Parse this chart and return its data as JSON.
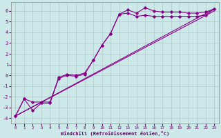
{
  "xlabel": "Windchill (Refroidissement éolien,°C)",
  "background_color": "#cce8e8",
  "grid_color": "#b0c8c8",
  "line_color": "#880088",
  "xlim": [
    -0.5,
    23.5
  ],
  "ylim": [
    -4.5,
    6.8
  ],
  "xticks": [
    0,
    1,
    2,
    3,
    4,
    5,
    6,
    7,
    8,
    9,
    10,
    11,
    12,
    13,
    14,
    15,
    16,
    17,
    18,
    19,
    20,
    21,
    22,
    23
  ],
  "yticks": [
    -4,
    -3,
    -2,
    -1,
    0,
    1,
    2,
    3,
    4,
    5,
    6
  ],
  "line1_x": [
    0,
    1,
    2,
    3,
    4,
    5,
    6,
    7,
    8,
    9,
    10,
    11,
    12,
    13,
    14,
    15,
    16,
    17,
    18,
    19,
    20,
    21,
    22,
    23
  ],
  "line1_y": [
    -3.8,
    -2.2,
    -3.3,
    -2.6,
    -2.6,
    -0.3,
    0.0,
    -0.1,
    0.1,
    1.4,
    2.8,
    3.9,
    5.7,
    6.1,
    5.8,
    6.3,
    6.0,
    5.9,
    5.9,
    5.9,
    5.8,
    5.8,
    5.9,
    6.2
  ],
  "line2_x": [
    0,
    1,
    2,
    3,
    4,
    5,
    6,
    7,
    8,
    9,
    10,
    11,
    12,
    13,
    14,
    15,
    16,
    17,
    18,
    19,
    20,
    21,
    22,
    23
  ],
  "line2_y": [
    -3.8,
    -2.2,
    -2.5,
    -2.5,
    -2.5,
    -0.2,
    0.1,
    0.0,
    0.2,
    1.4,
    2.8,
    3.9,
    5.7,
    5.8,
    5.5,
    5.6,
    5.5,
    5.5,
    5.5,
    5.5,
    5.5,
    5.5,
    5.6,
    6.2
  ],
  "line3_x": [
    0,
    23
  ],
  "line3_y": [
    -3.8,
    6.2
  ],
  "line4_x": [
    0,
    23
  ],
  "line4_y": [
    -3.8,
    6.0
  ]
}
